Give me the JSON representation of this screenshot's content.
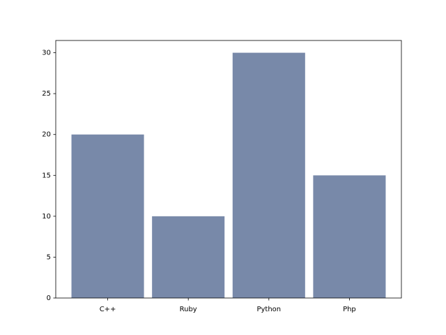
{
  "chart_data": {
    "type": "bar",
    "categories": [
      "C++",
      "Ruby",
      "Python",
      "Php"
    ],
    "values": [
      20,
      10,
      30,
      15
    ],
    "color": "#7889a9",
    "ylim": [
      0,
      31.5
    ],
    "yticks": [
      0,
      5,
      10,
      15,
      20,
      25,
      30
    ],
    "grid": false
  }
}
